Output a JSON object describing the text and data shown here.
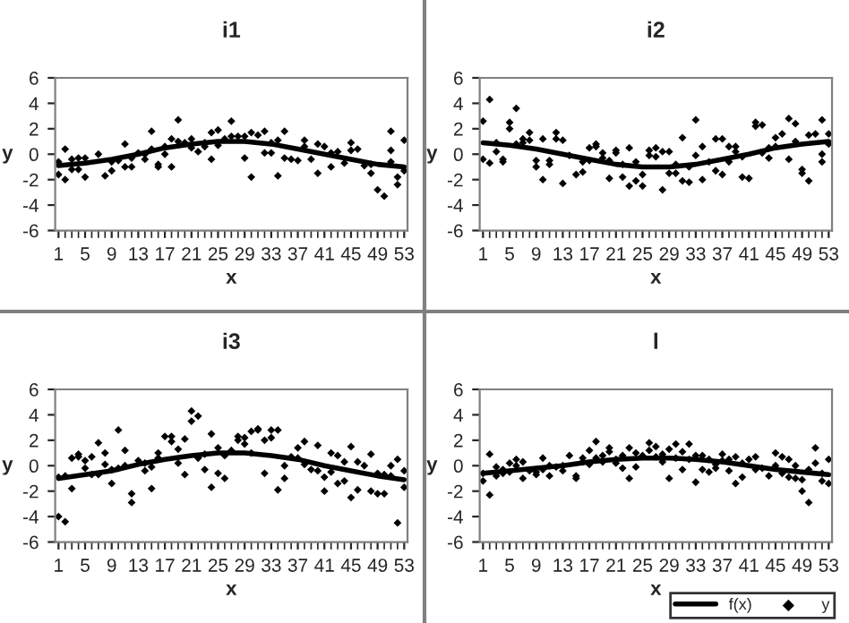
{
  "chart_data": [
    {
      "type": "scatter",
      "title": "i1",
      "xlabel": "x",
      "ylabel": "y",
      "xlim": [
        0.5,
        53.5
      ],
      "xticks": [
        1,
        5,
        9,
        13,
        17,
        21,
        25,
        29,
        33,
        37,
        41,
        45,
        49,
        53
      ],
      "ylim": [
        -6,
        6
      ],
      "yticks": [
        -6,
        -4,
        -2,
        0,
        2,
        4,
        6
      ],
      "grid": false,
      "legend": false,
      "series": [
        {
          "type": "line",
          "color": "#000000",
          "marker": "none",
          "x": [
            1,
            5,
            9,
            13,
            17,
            21,
            25,
            29,
            33,
            37,
            41,
            45,
            49,
            53
          ],
          "values": [
            -0.9,
            -0.7,
            -0.4,
            0.0,
            0.5,
            0.8,
            1.0,
            1.0,
            0.8,
            0.4,
            0.0,
            -0.4,
            -0.8,
            -1.0
          ]
        },
        {
          "type": "scatter",
          "color": "#000000",
          "marker": "diamond",
          "x": [
            1,
            1,
            2,
            2,
            3,
            3,
            4,
            4,
            5,
            5,
            7,
            8,
            9,
            9,
            10,
            11,
            11,
            12,
            12,
            13,
            14,
            14,
            15,
            15,
            16,
            16,
            17,
            17,
            18,
            18,
            19,
            19,
            20,
            21,
            21,
            22,
            23,
            23,
            24,
            24,
            25,
            25,
            26,
            27,
            27,
            28,
            29,
            29,
            30,
            30,
            31,
            32,
            32,
            33,
            33,
            34,
            34,
            35,
            35,
            36,
            37,
            38,
            38,
            39,
            40,
            40,
            41,
            42,
            42,
            43,
            44,
            45,
            45,
            46,
            47,
            48,
            48,
            49,
            50,
            51,
            51,
            51,
            52,
            52,
            53,
            53
          ],
          "values": [
            -1.6,
            -0.6,
            -2.0,
            0.4,
            -1.2,
            -0.4,
            -1.2,
            -0.3,
            -0.3,
            -1.8,
            0.0,
            -1.7,
            -1.3,
            -0.6,
            -0.5,
            0.8,
            -1.0,
            -1.0,
            -0.3,
            0.1,
            -0.4,
            0.0,
            1.8,
            0.4,
            -0.8,
            -1.0,
            0.6,
            0.0,
            -1.0,
            1.2,
            2.7,
            1.0,
            0.9,
            1.2,
            0.5,
            0.2,
            0.9,
            0.6,
            -0.4,
            1.7,
            1.9,
            0.7,
            1.2,
            2.6,
            1.4,
            1.4,
            1.4,
            -0.3,
            -1.8,
            1.7,
            1.5,
            1.8,
            0.1,
            0.9,
            0.1,
            -1.7,
            1.1,
            1.8,
            -0.3,
            -0.4,
            -0.5,
            1.1,
            0.6,
            -0.4,
            -1.5,
            0.8,
            0.6,
            -1.0,
            0.1,
            0.2,
            -0.7,
            0.9,
            0.3,
            0.4,
            -0.9,
            -1.5,
            -0.8,
            -2.8,
            -3.3,
            1.8,
            0.3,
            -0.6,
            -1.8,
            -2.4,
            1.1,
            -1.3
          ]
        }
      ]
    },
    {
      "type": "scatter",
      "title": "i2",
      "xlabel": "x",
      "ylabel": "y",
      "xlim": [
        0.5,
        53.5
      ],
      "xticks": [
        1,
        5,
        9,
        13,
        17,
        21,
        25,
        29,
        33,
        37,
        41,
        45,
        49,
        53
      ],
      "ylim": [
        -6,
        6
      ],
      "yticks": [
        -6,
        -4,
        -2,
        0,
        2,
        4,
        6
      ],
      "grid": false,
      "legend": false,
      "series": [
        {
          "type": "line",
          "color": "#000000",
          "marker": "none",
          "x": [
            1,
            5,
            9,
            13,
            17,
            21,
            25,
            29,
            33,
            37,
            41,
            45,
            49,
            53
          ],
          "values": [
            0.9,
            0.7,
            0.4,
            0.0,
            -0.4,
            -0.8,
            -1.0,
            -1.0,
            -0.8,
            -0.4,
            0.0,
            0.5,
            0.8,
            1.0
          ]
        },
        {
          "type": "scatter",
          "color": "#000000",
          "marker": "diamond",
          "x": [
            1,
            1,
            2,
            2,
            3,
            3,
            4,
            4,
            5,
            5,
            6,
            6,
            7,
            7,
            8,
            8,
            9,
            9,
            10,
            10,
            11,
            11,
            12,
            12,
            13,
            13,
            14,
            15,
            16,
            16,
            17,
            17,
            18,
            18,
            19,
            19,
            20,
            20,
            21,
            21,
            22,
            22,
            23,
            23,
            24,
            24,
            25,
            25,
            26,
            26,
            27,
            27,
            28,
            28,
            29,
            29,
            30,
            30,
            31,
            31,
            32,
            32,
            33,
            33,
            34,
            34,
            35,
            36,
            36,
            37,
            37,
            38,
            38,
            39,
            39,
            40,
            40,
            41,
            42,
            42,
            43,
            43,
            44,
            44,
            45,
            45,
            46,
            47,
            47,
            48,
            48,
            49,
            49,
            50,
            50,
            51,
            52,
            52,
            52,
            53,
            53
          ],
          "values": [
            2.6,
            -0.4,
            4.3,
            -0.7,
            0.9,
            0.2,
            -0.4,
            -0.6,
            2.5,
            2.0,
            3.6,
            0.8,
            1.2,
            0.9,
            1.7,
            1.1,
            -0.5,
            -1.0,
            -2.0,
            1.2,
            -0.5,
            -0.8,
            1.7,
            1.2,
            -2.3,
            1.1,
            -0.1,
            -1.6,
            -1.4,
            -0.6,
            0.5,
            -0.5,
            0.8,
            0.6,
            0.1,
            -0.3,
            -0.5,
            -1.9,
            0.3,
            0.1,
            -1.8,
            -0.8,
            0.5,
            -2.5,
            -2.1,
            -0.6,
            -1.6,
            -2.5,
            0.3,
            -0.1,
            0.5,
            -0.2,
            -2.8,
            0.2,
            0.2,
            -1.5,
            -1.5,
            -0.8,
            1.3,
            -2.1,
            -2.2,
            -1.0,
            2.7,
            -0.1,
            0.6,
            -2.0,
            -0.6,
            1.2,
            -1.3,
            1.2,
            -1.6,
            0.6,
            -0.6,
            0.6,
            0.2,
            -1.8,
            -0.2,
            -1.9,
            2.5,
            2.2,
            2.3,
            0.1,
            0.5,
            -0.3,
            1.3,
            0.6,
            1.6,
            2.8,
            -0.4,
            2.4,
            1.0,
            -1.2,
            -1.5,
            -2.1,
            1.5,
            1.6,
            -0.6,
            0.0,
            2.7,
            1.6,
            0.8
          ]
        }
      ]
    },
    {
      "type": "scatter",
      "title": "i3",
      "xlabel": "x",
      "ylabel": "y",
      "xlim": [
        0.5,
        53.5
      ],
      "xticks": [
        1,
        5,
        9,
        13,
        17,
        21,
        25,
        29,
        33,
        37,
        41,
        45,
        49,
        53
      ],
      "ylim": [
        -6,
        6
      ],
      "yticks": [
        -6,
        -4,
        -2,
        0,
        2,
        4,
        6
      ],
      "grid": false,
      "legend": false,
      "series": [
        {
          "type": "line",
          "color": "#000000",
          "marker": "none",
          "x": [
            1,
            5,
            9,
            13,
            17,
            21,
            25,
            29,
            33,
            37,
            41,
            45,
            49,
            53
          ],
          "values": [
            -1.0,
            -0.7,
            -0.4,
            0.1,
            0.5,
            0.8,
            1.0,
            1.0,
            0.8,
            0.5,
            0.0,
            -0.4,
            -0.8,
            -1.1
          ]
        },
        {
          "type": "scatter",
          "color": "#000000",
          "marker": "diamond",
          "x": [
            1,
            1,
            2,
            2,
            3,
            3,
            4,
            4,
            5,
            5,
            6,
            6,
            7,
            7,
            8,
            8,
            9,
            9,
            10,
            10,
            11,
            11,
            12,
            12,
            13,
            14,
            14,
            15,
            15,
            16,
            16,
            17,
            18,
            18,
            19,
            19,
            20,
            20,
            21,
            21,
            22,
            22,
            23,
            23,
            24,
            24,
            25,
            25,
            26,
            26,
            27,
            28,
            28,
            29,
            29,
            30,
            30,
            31,
            31,
            32,
            32,
            33,
            33,
            34,
            34,
            35,
            35,
            36,
            37,
            37,
            38,
            38,
            39,
            40,
            40,
            41,
            41,
            42,
            42,
            43,
            43,
            44,
            44,
            45,
            45,
            46,
            46,
            47,
            48,
            48,
            49,
            49,
            50,
            50,
            51,
            51,
            52,
            52,
            53,
            53
          ],
          "values": [
            -4.0,
            -0.9,
            -4.4,
            -0.8,
            0.6,
            -1.8,
            0.9,
            0.7,
            0.4,
            -0.2,
            0.7,
            -0.7,
            1.8,
            -0.7,
            1.0,
            0.1,
            -1.4,
            -0.3,
            2.8,
            -0.2,
            1.2,
            0.0,
            -2.2,
            -2.9,
            0.4,
            0.2,
            -0.4,
            -1.8,
            -0.1,
            1.0,
            0.6,
            2.3,
            2.3,
            1.9,
            1.3,
            0.2,
            2.1,
            -0.7,
            4.3,
            3.5,
            3.9,
            0.6,
            -0.3,
            0.9,
            2.5,
            -1.7,
            1.4,
            -0.6,
            -1.0,
            0.8,
            1.2,
            2.3,
            2.0,
            2.2,
            1.7,
            2.7,
            1.0,
            2.9,
            2.8,
            2.0,
            -0.6,
            2.8,
            2.2,
            2.8,
            -1.9,
            0.0,
            -1.0,
            0.7,
            1.4,
            0.6,
            1.9,
            0.1,
            -0.3,
            1.6,
            -0.4,
            -2.0,
            -0.9,
            1.0,
            -0.5,
            0.8,
            -1.4,
            0.3,
            -1.2,
            1.5,
            -2.5,
            0.3,
            -1.9,
            0.0,
            0.9,
            -2.0,
            -2.2,
            -0.6,
            -2.2,
            -0.7,
            0.0,
            -0.8,
            0.5,
            -4.5,
            -0.4,
            -1.7
          ]
        }
      ]
    },
    {
      "type": "scatter",
      "title": "l",
      "xlabel": "x",
      "ylabel": "y",
      "xlim": [
        0.5,
        53.5
      ],
      "xticks": [
        1,
        5,
        9,
        13,
        17,
        21,
        25,
        29,
        33,
        37,
        41,
        45,
        49,
        53
      ],
      "ylim": [
        -6,
        6
      ],
      "yticks": [
        -6,
        -4,
        -2,
        0,
        2,
        4,
        6
      ],
      "grid": false,
      "legend": "bottom right",
      "series": [
        {
          "type": "line",
          "name": "f(x)",
          "color": "#000000",
          "marker": "none",
          "x": [
            1,
            5,
            9,
            13,
            17,
            21,
            25,
            29,
            33,
            37,
            41,
            45,
            49,
            53
          ],
          "values": [
            -0.6,
            -0.4,
            -0.2,
            0.0,
            0.3,
            0.5,
            0.6,
            0.6,
            0.5,
            0.3,
            0.0,
            -0.3,
            -0.5,
            -0.7
          ]
        },
        {
          "type": "scatter",
          "name": "y",
          "color": "#000000",
          "marker": "diamond",
          "x": [
            1,
            1,
            2,
            2,
            3,
            3,
            4,
            4,
            5,
            5,
            6,
            6,
            7,
            7,
            8,
            9,
            9,
            10,
            10,
            11,
            11,
            12,
            13,
            13,
            14,
            15,
            15,
            16,
            16,
            17,
            17,
            18,
            18,
            19,
            19,
            20,
            20,
            21,
            21,
            22,
            22,
            23,
            23,
            24,
            24,
            25,
            26,
            26,
            27,
            27,
            28,
            28,
            29,
            29,
            30,
            30,
            31,
            31,
            32,
            32,
            33,
            33,
            34,
            34,
            35,
            35,
            36,
            36,
            37,
            37,
            38,
            38,
            39,
            39,
            40,
            40,
            41,
            42,
            42,
            43,
            44,
            45,
            45,
            46,
            46,
            47,
            47,
            48,
            48,
            49,
            49,
            50,
            50,
            51,
            51,
            52,
            52,
            53,
            53
          ],
          "values": [
            -1.2,
            -0.6,
            -2.3,
            0.9,
            -0.8,
            -0.1,
            -0.6,
            -0.3,
            0.2,
            -0.5,
            0.5,
            0.0,
            0.3,
            -1.0,
            -0.4,
            -0.5,
            -0.7,
            0.6,
            -0.3,
            -0.8,
            0.0,
            -0.1,
            -0.4,
            0.0,
            0.8,
            -0.8,
            -1.0,
            0.6,
            0.3,
            1.2,
            0.1,
            1.9,
            0.6,
            0.8,
            0.3,
            1.4,
            1.1,
            0.5,
            0.2,
            -0.2,
            0.8,
            -1.0,
            1.4,
            1.0,
            -0.1,
            0.8,
            1.8,
            1.2,
            1.5,
            0.7,
            0.9,
            0.3,
            -1.0,
            1.3,
            1.7,
            0.6,
            1.1,
            -0.3,
            1.7,
            0.5,
            -1.3,
            0.8,
            0.8,
            -0.3,
            -0.5,
            0.5,
            -0.2,
            0.1,
            0.9,
            0.4,
            0.5,
            -0.4,
            0.7,
            -1.4,
            -0.9,
            0.2,
            0.5,
            0.7,
            -0.3,
            -0.2,
            -0.8,
            1.0,
            0.0,
            0.7,
            -0.6,
            0.5,
            -0.9,
            -1.0,
            0.0,
            -2.0,
            -1.1,
            -2.9,
            -0.3,
            1.4,
            0.2,
            -1.2,
            -0.6,
            -1.4,
            0.5
          ]
        }
      ]
    }
  ]
}
